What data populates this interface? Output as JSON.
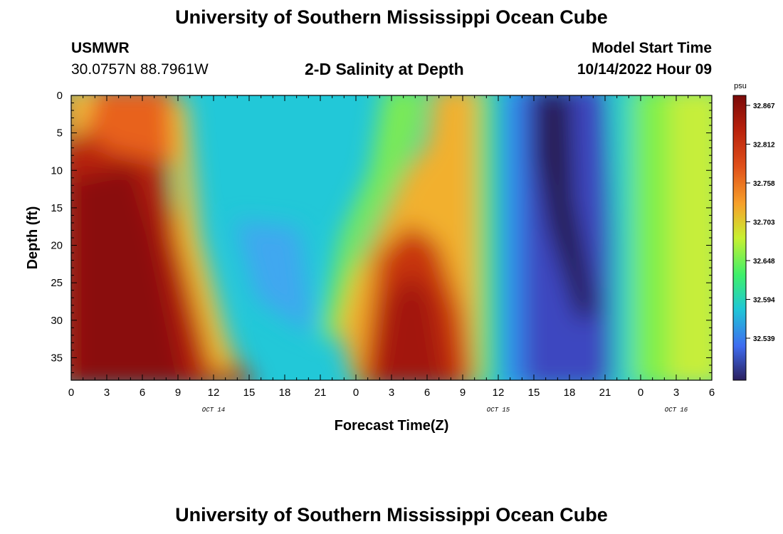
{
  "header": {
    "title": "University of Southern Mississippi Ocean Cube",
    "station_name": "USMWR",
    "station_coords": "30.0757N  88.7961W",
    "plot_title": "2-D Salinity at Depth",
    "model_label": "Model Start Time",
    "model_time": "10/14/2022 Hour 09"
  },
  "footer": {
    "title": "University of Southern Mississippi Ocean Cube"
  },
  "chart_data": {
    "type": "heatmap",
    "xlabel": "Forecast Time(Z)",
    "ylabel": "Depth (ft)",
    "x_ticks": [
      "0",
      "3",
      "6",
      "9",
      "12",
      "15",
      "18",
      "21",
      "0",
      "3",
      "6",
      "9",
      "12",
      "15",
      "18",
      "21",
      "0",
      "3",
      "6"
    ],
    "x_range_hours": [
      0,
      54
    ],
    "date_labels": [
      {
        "text": "OCT 14",
        "hour": 12
      },
      {
        "text": "OCT 15",
        "hour": 36
      },
      {
        "text": "OCT 16",
        "hour": 51
      }
    ],
    "y_ticks": [
      "0",
      "5",
      "10",
      "15",
      "20",
      "25",
      "30",
      "35"
    ],
    "y_range": [
      0,
      38
    ],
    "colorbar": {
      "unit": "psu",
      "ticks": [
        "32.867",
        "32.812",
        "32.758",
        "32.703",
        "32.648",
        "32.594",
        "32.539"
      ],
      "range": [
        32.5,
        32.9
      ]
    },
    "features": [
      {
        "name": "high-salinity-body-1",
        "hour_min": 0,
        "hour_max": 10,
        "depth_min": 0,
        "depth_max": 38,
        "salinity": 32.86
      },
      {
        "name": "low-salinity-band",
        "hour_min": 10,
        "hour_max": 25,
        "depth_min": 0,
        "depth_max": 38,
        "salinity": 32.58
      },
      {
        "name": "high-salinity-body-2",
        "hour_min": 25,
        "hour_max": 33,
        "depth_min": 16,
        "depth_max": 38,
        "salinity": 32.83
      },
      {
        "name": "minimum-salinity-trough",
        "hour_min": 36,
        "hour_max": 47,
        "depth_min": 0,
        "depth_max": 38,
        "salinity": 32.51
      },
      {
        "name": "mid-salinity-tail",
        "hour_min": 47,
        "hour_max": 54,
        "depth_min": 0,
        "depth_max": 38,
        "salinity": 32.65
      }
    ]
  }
}
